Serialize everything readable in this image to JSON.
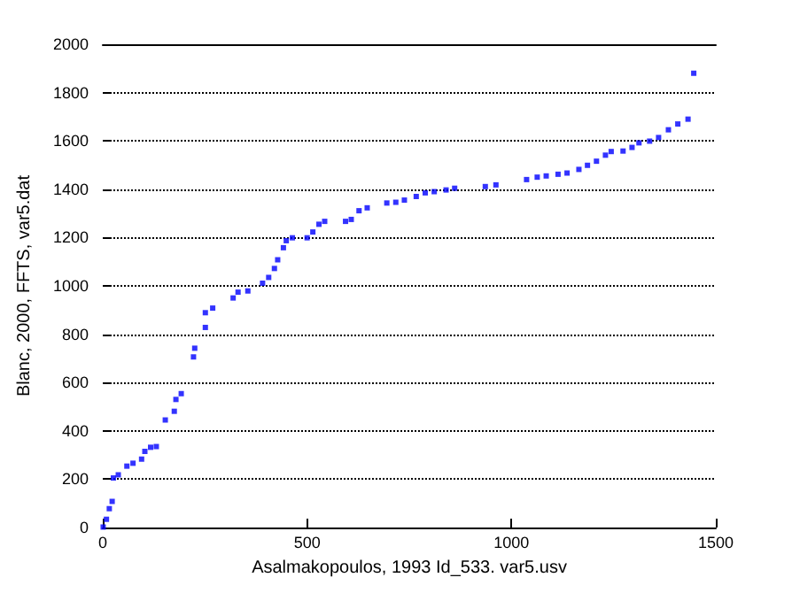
{
  "chart_data": {
    "type": "scatter",
    "xlabel": "Asalmakopoulos, 1993 Id_533. var5.usv",
    "ylabel": "Blanc, 2000, FFTS, var5.dat",
    "x": [
      1,
      9,
      16,
      23,
      26,
      38,
      59,
      74,
      95,
      103,
      117,
      131,
      153,
      175,
      179,
      192,
      222,
      225,
      251,
      251,
      269,
      319,
      331,
      355,
      391,
      406,
      420,
      428,
      442,
      449,
      464,
      500,
      514,
      529,
      543,
      594,
      608,
      627,
      647,
      695,
      717,
      738,
      767,
      789,
      811,
      840,
      861,
      936,
      962,
      1037,
      1063,
      1085,
      1114,
      1136,
      1165,
      1186,
      1208,
      1230,
      1244,
      1273,
      1295,
      1312,
      1338,
      1360,
      1384,
      1407,
      1432,
      1446
    ],
    "series": [
      {
        "color": "#0000ff",
        "values": [
          2,
          34,
          78,
          108,
          205,
          218,
          254,
          266,
          283,
          315,
          332,
          335,
          445,
          481,
          530,
          554,
          706,
          742,
          828,
          889,
          908,
          950,
          974,
          979,
          1011,
          1035,
          1072,
          1108,
          1158,
          1187,
          1199,
          1199,
          1223,
          1255,
          1267,
          1267,
          1275,
          1311,
          1323,
          1343,
          1346,
          1355,
          1370,
          1385,
          1390,
          1397,
          1404,
          1411,
          1418,
          1440,
          1450,
          1455,
          1462,
          1467,
          1482,
          1499,
          1516,
          1541,
          1556,
          1558,
          1573,
          1592,
          1599,
          1614,
          1646,
          1670,
          1690,
          1880
        ]
      }
    ],
    "xlim": [
      0,
      1500
    ],
    "xticks": [
      0,
      500,
      1000,
      1500
    ],
    "ylim": [
      0,
      2000
    ],
    "yticks": [
      0,
      200,
      400,
      600,
      800,
      1000,
      1200,
      1400,
      1600,
      1800,
      2000
    ],
    "grid": "y",
    "marker": "square"
  }
}
